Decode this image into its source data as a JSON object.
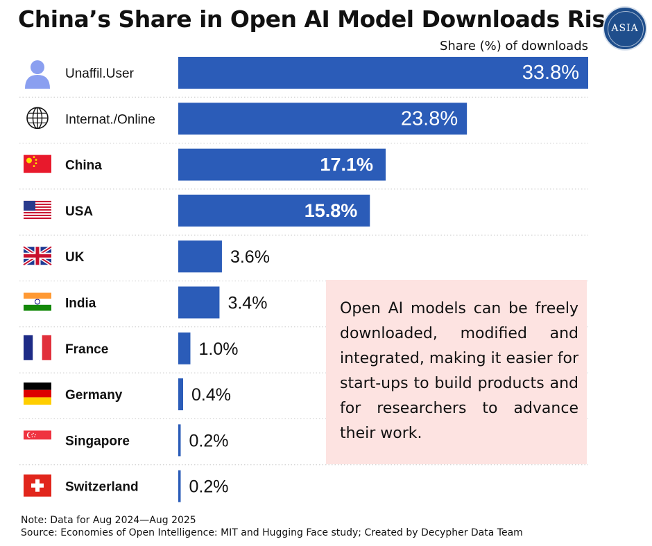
{
  "title": "China’s Share in Open AI Model Downloads Rises",
  "logo_text": "ASIA",
  "colors": {
    "bar": "#2b5cb8",
    "note_box": "#fde3e1"
  },
  "chart_data": {
    "type": "bar",
    "orientation": "horizontal",
    "unit_label": "Share (%) of downloads",
    "categories": [
      "Unaffil.User",
      "Internat./Online",
      "China",
      "USA",
      "UK",
      "India",
      "France",
      "Germany",
      "Singapore",
      "Switzerland"
    ],
    "values": [
      33.8,
      23.8,
      17.1,
      15.8,
      3.6,
      3.4,
      1.0,
      0.4,
      0.2,
      0.2
    ],
    "labels": [
      "33.8%",
      "23.8%",
      "17.1%",
      "15.8%",
      "3.6%",
      "3.4%",
      "1.0%",
      "0.4%",
      "0.2%",
      "0.2%"
    ],
    "icons": [
      "user-icon",
      "globe-icon",
      "china-flag-icon",
      "usa-flag-icon",
      "uk-flag-icon",
      "india-flag-icon",
      "france-flag-icon",
      "germany-flag-icon",
      "singapore-flag-icon",
      "switzerland-flag-icon"
    ],
    "bold": [
      false,
      false,
      true,
      true,
      true,
      true,
      true,
      true,
      true,
      true
    ],
    "xlim": [
      0,
      33.8
    ]
  },
  "note_box": {
    "text": "Open AI models can be freely downloaded, modified and integrated, making it easier for start-ups to build products and for researchers to advance their work."
  },
  "footer": {
    "note": "Note: Data for Aug 2024—Aug 2025",
    "source": "Source: Economies of Open Intelligence: MIT and Hugging Face study; Created by Decypher Data Team"
  }
}
